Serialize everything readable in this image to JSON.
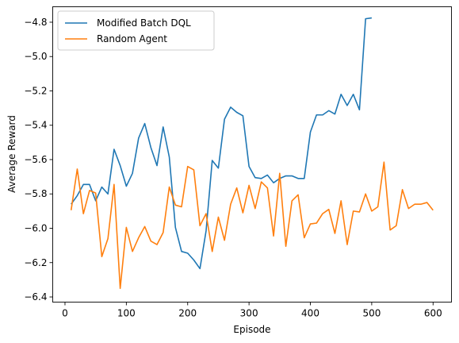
{
  "chart_data": {
    "type": "line",
    "xlabel": "Episode",
    "ylabel": "Average Reward",
    "xlim": [
      -20,
      630
    ],
    "ylim": [
      -6.43,
      -4.71
    ],
    "x_ticks": [
      0,
      100,
      200,
      300,
      400,
      500,
      600
    ],
    "y_ticks": [
      -6.4,
      -6.2,
      -6.0,
      -5.8,
      -5.6,
      -5.4,
      -5.2,
      -5.0,
      -4.8
    ],
    "x_tick_labels": [
      "0",
      "100",
      "200",
      "300",
      "400",
      "500",
      "600"
    ],
    "y_tick_labels": [
      "−6.4",
      "−6.2",
      "−6.0",
      "−5.8",
      "−5.6",
      "−5.4",
      "−5.2",
      "−5.0",
      "−4.8"
    ],
    "grid": false,
    "legend_position": "upper-left",
    "series": [
      {
        "name": "Modified Batch DQL",
        "color": "#1f77b4",
        "x": [
          10,
          20,
          30,
          40,
          50,
          60,
          70,
          80,
          90,
          100,
          110,
          120,
          130,
          140,
          150,
          160,
          170,
          180,
          190,
          200,
          210,
          220,
          230,
          240,
          250,
          260,
          270,
          280,
          290,
          300,
          310,
          320,
          330,
          340,
          350,
          360,
          370,
          380,
          390,
          400,
          410,
          420,
          430,
          440,
          450,
          460,
          470,
          480,
          490,
          500
        ],
        "y": [
          -5.86,
          -5.81,
          -5.745,
          -5.745,
          -5.84,
          -5.76,
          -5.8,
          -5.54,
          -5.635,
          -5.755,
          -5.68,
          -5.475,
          -5.39,
          -5.53,
          -5.635,
          -5.41,
          -5.585,
          -5.995,
          -6.135,
          -6.145,
          -6.185,
          -6.235,
          -6.015,
          -5.605,
          -5.65,
          -5.365,
          -5.295,
          -5.325,
          -5.345,
          -5.64,
          -5.705,
          -5.71,
          -5.69,
          -5.735,
          -5.71,
          -5.695,
          -5.695,
          -5.71,
          -5.71,
          -5.44,
          -5.34,
          -5.34,
          -5.315,
          -5.335,
          -5.22,
          -5.285,
          -5.22,
          -5.31,
          -4.78,
          -4.775
        ]
      },
      {
        "name": "Random Agent",
        "color": "#ff7f0e",
        "x": [
          10,
          20,
          30,
          40,
          50,
          60,
          70,
          80,
          90,
          100,
          110,
          120,
          130,
          140,
          150,
          160,
          170,
          180,
          190,
          200,
          210,
          220,
          230,
          240,
          250,
          260,
          270,
          280,
          290,
          300,
          310,
          320,
          330,
          340,
          350,
          360,
          370,
          380,
          390,
          400,
          410,
          420,
          430,
          440,
          450,
          460,
          470,
          480,
          490,
          500,
          510,
          520,
          530,
          540,
          550,
          560,
          570,
          580,
          590,
          600
        ],
        "y": [
          -5.895,
          -5.655,
          -5.915,
          -5.78,
          -5.795,
          -6.165,
          -6.06,
          -5.745,
          -6.35,
          -5.995,
          -6.135,
          -6.055,
          -5.99,
          -6.075,
          -6.095,
          -6.025,
          -5.76,
          -5.865,
          -5.875,
          -5.64,
          -5.66,
          -5.985,
          -5.915,
          -6.135,
          -5.935,
          -6.07,
          -5.86,
          -5.765,
          -5.91,
          -5.75,
          -5.885,
          -5.73,
          -5.765,
          -6.045,
          -5.68,
          -6.105,
          -5.84,
          -5.805,
          -6.055,
          -5.975,
          -5.97,
          -5.915,
          -5.89,
          -6.03,
          -5.84,
          -6.095,
          -5.9,
          -5.905,
          -5.8,
          -5.9,
          -5.875,
          -5.615,
          -6.01,
          -5.985,
          -5.775,
          -5.885,
          -5.86,
          -5.86,
          -5.85,
          -5.895
        ]
      }
    ]
  }
}
